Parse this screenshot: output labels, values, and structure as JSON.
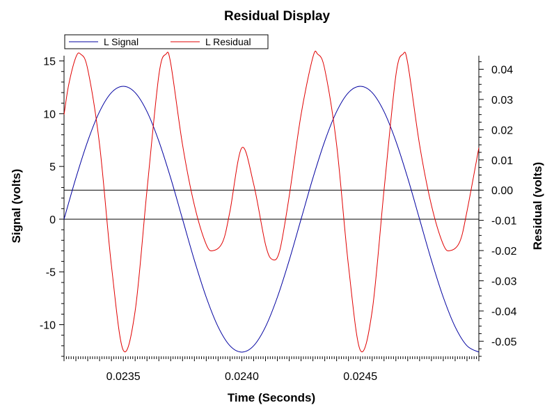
{
  "chart_data": {
    "type": "line",
    "title": "Residual Display",
    "xlabel": "Time (Seconds)",
    "ylabel_left": "Signal (volts)",
    "ylabel_right": "Residual (volts)",
    "xlim": [
      0.02325,
      0.025
    ],
    "ylim_left": [
      -13,
      15.5
    ],
    "ylim_right": [
      -0.055,
      0.0445
    ],
    "x_ticks": [
      {
        "value": 0.0235,
        "label": "0.0235"
      },
      {
        "value": 0.024,
        "label": "0.0240"
      },
      {
        "value": 0.0245,
        "label": "0.0245"
      }
    ],
    "y_left_ticks": [
      {
        "value": 15,
        "label": "15"
      },
      {
        "value": 10,
        "label": "10"
      },
      {
        "value": 5,
        "label": "5"
      },
      {
        "value": 0,
        "label": "0"
      },
      {
        "value": -5,
        "label": "-5"
      },
      {
        "value": -10,
        "label": "-10"
      }
    ],
    "y_right_ticks": [
      {
        "value": 0.04,
        "label": "0.04"
      },
      {
        "value": 0.03,
        "label": "0.03"
      },
      {
        "value": 0.02,
        "label": "0.02"
      },
      {
        "value": 0.01,
        "label": "0.01"
      },
      {
        "value": 0.0,
        "label": "0.00"
      },
      {
        "value": -0.01,
        "label": "-0.01"
      },
      {
        "value": -0.02,
        "label": "-0.02"
      },
      {
        "value": -0.03,
        "label": "-0.03"
      },
      {
        "value": -0.04,
        "label": "-0.04"
      },
      {
        "value": -0.05,
        "label": "-0.05"
      }
    ],
    "legend": [
      {
        "name": "L Signal",
        "color": "#0000a0"
      },
      {
        "name": "L Residual",
        "color": "#e00000"
      }
    ],
    "legend_placement": "top-left",
    "grid": false,
    "series": [
      {
        "name": "L Signal",
        "axis": "left",
        "color": "#0000a0",
        "x": [
          0.02325,
          0.0233,
          0.02335,
          0.0234,
          0.02345,
          0.0235,
          0.02355,
          0.0236,
          0.02365,
          0.0237,
          0.02375,
          0.0238,
          0.02385,
          0.0239,
          0.02395,
          0.024,
          0.02405,
          0.0241,
          0.02415,
          0.0242,
          0.02425,
          0.0243,
          0.02435,
          0.0244,
          0.02445,
          0.0245,
          0.02455,
          0.0246,
          0.02465,
          0.0247,
          0.02475,
          0.0248,
          0.02485,
          0.0249,
          0.02495,
          0.025
        ],
        "y": [
          0.0,
          3.9,
          7.4,
          10.2,
          12.0,
          12.6,
          12.0,
          10.2,
          7.4,
          3.9,
          0.0,
          -3.9,
          -7.4,
          -10.2,
          -12.0,
          -12.6,
          -12.0,
          -10.2,
          -7.4,
          -3.9,
          0.0,
          3.9,
          7.4,
          10.2,
          12.0,
          12.6,
          12.0,
          10.2,
          7.4,
          3.9,
          0.0,
          -3.9,
          -7.4,
          -10.2,
          -12.0,
          -12.6
        ]
      },
      {
        "name": "L Residual",
        "axis": "right",
        "color": "#e00000",
        "x": [
          0.02325,
          0.02327,
          0.0233,
          0.02332,
          0.02335,
          0.0234,
          0.02345,
          0.0235,
          0.02355,
          0.0236,
          0.02365,
          0.02368,
          0.0237,
          0.02375,
          0.0238,
          0.02385,
          0.02388,
          0.02392,
          0.02395,
          0.024,
          0.02405,
          0.0241,
          0.02413,
          0.02416,
          0.0242,
          0.02425,
          0.0243,
          0.02432,
          0.02435,
          0.0244,
          0.02445,
          0.0245,
          0.02455,
          0.0246,
          0.02465,
          0.02468,
          0.0247,
          0.02475,
          0.0248,
          0.02485,
          0.02488,
          0.02492,
          0.02495,
          0.025
        ],
        "y": [
          0.025,
          0.035,
          0.044,
          0.045,
          0.04,
          0.015,
          -0.025,
          -0.053,
          -0.04,
          0.0,
          0.038,
          0.045,
          0.042,
          0.015,
          -0.005,
          -0.018,
          -0.02,
          -0.017,
          -0.007,
          0.014,
          0.002,
          -0.018,
          -0.023,
          -0.02,
          -0.002,
          0.025,
          0.044,
          0.045,
          0.04,
          0.015,
          -0.025,
          -0.053,
          -0.04,
          0.0,
          0.038,
          0.045,
          0.042,
          0.015,
          -0.005,
          -0.018,
          -0.02,
          -0.017,
          -0.007,
          0.014
        ]
      }
    ]
  }
}
